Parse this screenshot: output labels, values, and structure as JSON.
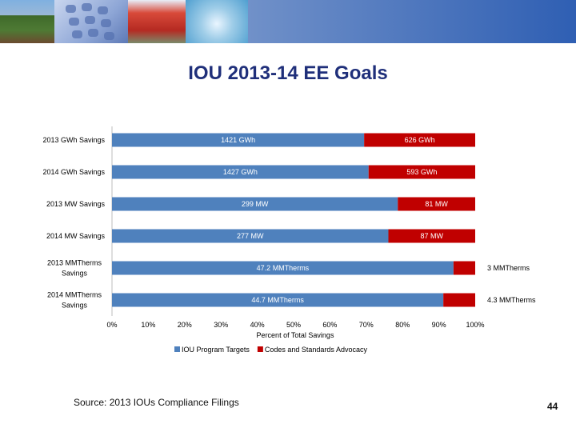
{
  "header": {
    "photo_strip": [
      "house-solar-photo",
      "telephone-keypad-photo",
      "train-photo",
      "water-drop-photo"
    ]
  },
  "slide": {
    "title": "IOU 2013-14 EE Goals",
    "source": "Source: 2013 IOUs Compliance Filings",
    "page_number": "44"
  },
  "chart_data": {
    "type": "bar",
    "orientation": "horizontal",
    "stacked": "percent",
    "categories": [
      "2013 GWh Savings",
      "2014 GWh Savings",
      "2013 MW Savings",
      "2014 MW Savings",
      "2013 MMTherms Savings",
      "2014 MMTherms Savings"
    ],
    "category_label_lines": [
      [
        "2013 GWh Savings"
      ],
      [
        "2014 GWh Savings"
      ],
      [
        "2013 MW Savings"
      ],
      [
        "2014 MW Savings"
      ],
      [
        "2013 MMTherms",
        "Savings"
      ],
      [
        "2014 MMTherms",
        "Savings"
      ]
    ],
    "series": [
      {
        "name": "IOU Program Targets",
        "color": "#4f81bd",
        "values": [
          1421,
          1427,
          299,
          277,
          47.2,
          44.7
        ],
        "labels": [
          "1421 GWh",
          "1427 GWh",
          "299 MW",
          "277 MW",
          "47.2 MMTherms",
          "44.7 MMTherms"
        ]
      },
      {
        "name": "Codes and Standards Advocacy",
        "color": "#c00000",
        "values": [
          626,
          593,
          81,
          87,
          3,
          4.3
        ],
        "labels": [
          "626 GWh",
          "593 GWh",
          "81 MW",
          "87 MW",
          "3 MMTherms",
          "4.3 MMTherms"
        ]
      }
    ],
    "xlabel": "Percent of Total Savings",
    "xlim": [
      0,
      100
    ],
    "xticks": [
      "0%",
      "10%",
      "20%",
      "30%",
      "40%",
      "50%",
      "60%",
      "70%",
      "80%",
      "90%",
      "100%"
    ],
    "legend": "bottom",
    "grid": false
  }
}
